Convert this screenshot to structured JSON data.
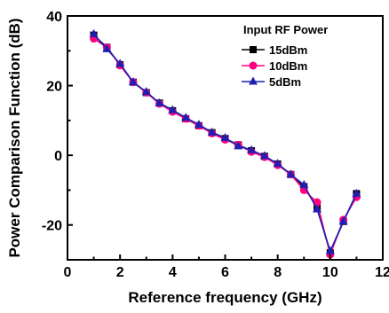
{
  "chart_data": {
    "type": "line",
    "xlabel": "Reference frequency (GHz)",
    "ylabel": "Power Comparison Function (dB)",
    "xlim": [
      0,
      12
    ],
    "ylim": [
      -30,
      40
    ],
    "x_ticks": [
      0,
      2,
      4,
      6,
      8,
      10,
      12
    ],
    "y_ticks": [
      -20,
      0,
      20,
      40
    ],
    "grid": false,
    "legend_title": "Input RF Power",
    "legend_position": "top-right",
    "x": [
      1.0,
      1.5,
      2.0,
      2.5,
      3.0,
      3.5,
      4.0,
      4.5,
      5.0,
      5.5,
      6.0,
      6.5,
      7.0,
      7.5,
      8.0,
      8.5,
      9.0,
      9.5,
      10.0,
      10.5,
      11.0
    ],
    "series": [
      {
        "name": "15dBm",
        "color": "#000000",
        "marker": "square",
        "values": [
          34.5,
          31.0,
          26.0,
          21.0,
          18.0,
          15.0,
          12.8,
          10.5,
          8.5,
          6.5,
          4.8,
          3.0,
          1.3,
          -0.3,
          -2.5,
          -5.5,
          -9.0,
          -15.0,
          -28.0,
          -19.0,
          -11.0
        ]
      },
      {
        "name": "10dBm",
        "color": "#ff0080",
        "marker": "circle",
        "values": [
          33.5,
          31.0,
          25.8,
          21.0,
          18.0,
          14.8,
          12.5,
          10.5,
          8.5,
          6.3,
          4.5,
          3.0,
          1.0,
          -0.5,
          -2.8,
          -5.5,
          -10.0,
          -13.5,
          -28.5,
          -18.5,
          -12.0
        ]
      },
      {
        "name": "5dBm",
        "color": "#1f1fb4",
        "marker": "triangle",
        "values": [
          34.8,
          30.5,
          26.3,
          21.0,
          18.2,
          15.0,
          13.0,
          10.8,
          8.8,
          6.6,
          5.0,
          2.6,
          1.5,
          -0.2,
          -2.4,
          -5.5,
          -8.5,
          -15.5,
          -27.5,
          -19.0,
          -11.0
        ]
      }
    ]
  }
}
